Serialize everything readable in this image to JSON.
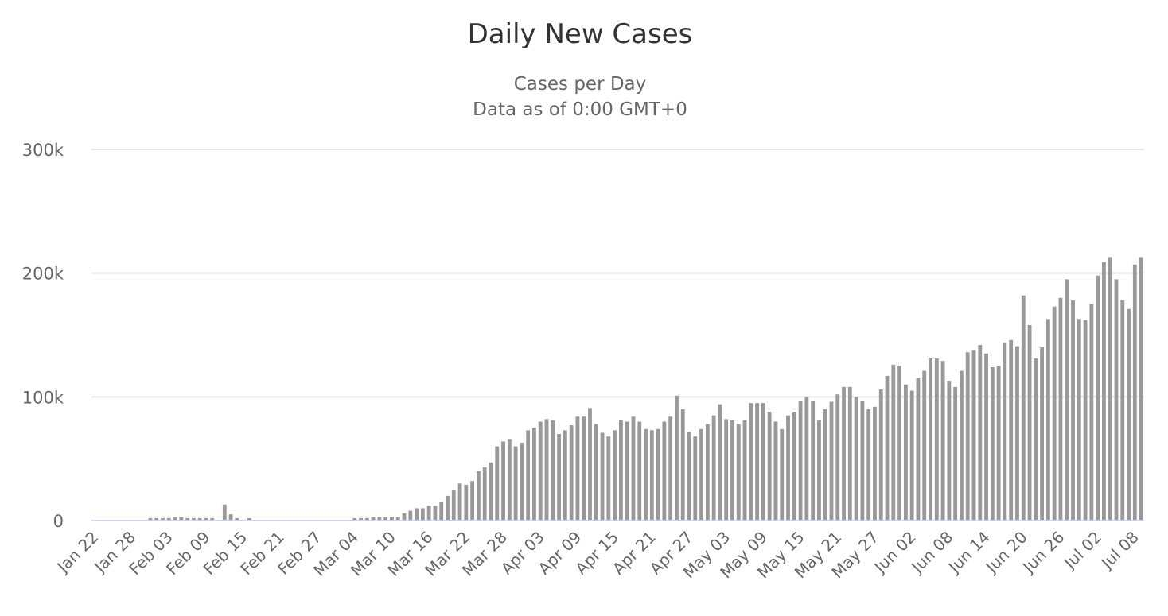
{
  "chart_data": {
    "type": "bar",
    "title": "Daily New Cases",
    "subtitle_lines": [
      "Cases per Day",
      "Data as of 0:00 GMT+0"
    ],
    "xlabel": "",
    "ylabel": "",
    "ylim": [
      0,
      300000
    ],
    "yticks": [
      {
        "value": 0,
        "label": "0"
      },
      {
        "value": 100000,
        "label": "100k"
      },
      {
        "value": 200000,
        "label": "200k"
      },
      {
        "value": 300000,
        "label": "300k"
      }
    ],
    "grid": true,
    "legend": "none",
    "bar_color": "#999999",
    "first_date": "Jan 22",
    "xtick_labels": [
      "Jan 22",
      "Jan 28",
      "Feb 03",
      "Feb 09",
      "Feb 15",
      "Feb 21",
      "Feb 27",
      "Mar 04",
      "Mar 10",
      "Mar 16",
      "Mar 22",
      "Mar 28",
      "Apr 03",
      "Apr 09",
      "Apr 15",
      "Apr 21",
      "Apr 27",
      "May 03",
      "May 09",
      "May 15",
      "May 21",
      "May 27",
      "Jun 02",
      "Jun 08",
      "Jun 14",
      "Jun 20",
      "Jun 26",
      "Jul 02",
      "Jul 08"
    ],
    "values": [
      0,
      0,
      0,
      0,
      0,
      0,
      0,
      0,
      0,
      2000,
      2000,
      2000,
      2000,
      3000,
      3000,
      2000,
      2000,
      2000,
      2000,
      2000,
      0,
      13000,
      5000,
      2000,
      0,
      2000,
      0,
      0,
      0,
      0,
      0,
      0,
      0,
      0,
      0,
      0,
      0,
      0,
      0,
      0,
      0,
      0,
      2000,
      2000,
      2000,
      3000,
      3000,
      3000,
      3000,
      3000,
      6000,
      8000,
      10000,
      10000,
      12000,
      12000,
      15000,
      20000,
      25000,
      30000,
      29000,
      32000,
      40000,
      43000,
      47000,
      60000,
      64000,
      66000,
      60000,
      63000,
      73000,
      75000,
      80000,
      82000,
      81000,
      70000,
      73000,
      77000,
      84000,
      84000,
      91000,
      78000,
      71000,
      68000,
      73000,
      81000,
      80000,
      84000,
      80000,
      74000,
      73000,
      74000,
      80000,
      84000,
      101000,
      90000,
      72000,
      68000,
      74000,
      78000,
      85000,
      94000,
      82000,
      81000,
      78000,
      81000,
      95000,
      95000,
      95000,
      88000,
      80000,
      74000,
      85000,
      88000,
      97000,
      100000,
      97000,
      81000,
      90000,
      96000,
      102000,
      108000,
      108000,
      100000,
      97000,
      90000,
      92000,
      106000,
      117000,
      126000,
      125000,
      110000,
      105000,
      115000,
      121000,
      131000,
      131000,
      129000,
      113000,
      108000,
      121000,
      136000,
      138000,
      142000,
      135000,
      124000,
      125000,
      144000,
      146000,
      141000,
      182000,
      158000,
      131000,
      140000,
      163000,
      173000,
      180000,
      195000,
      178000,
      163000,
      162000,
      175000,
      198000,
      209000,
      213000,
      195000,
      178000,
      171000,
      207000,
      213000
    ]
  }
}
